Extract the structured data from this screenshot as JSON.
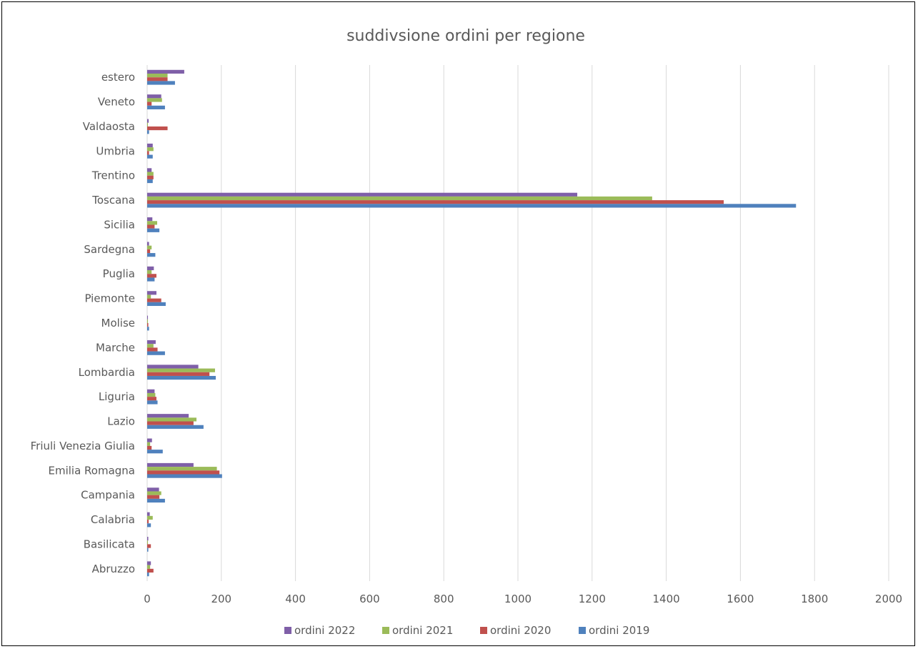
{
  "chart_data": {
    "type": "bar",
    "orientation": "horizontal",
    "title": "suddivsione ordini per regione",
    "xlabel": "",
    "ylabel": "",
    "xlim": [
      0,
      2000
    ],
    "x_ticks": [
      0,
      200,
      400,
      600,
      800,
      1000,
      1200,
      1400,
      1600,
      1800,
      2000
    ],
    "grid": true,
    "legend_position": "bottom",
    "categories": [
      "Abruzzo",
      "Basilicata",
      "Calabria",
      "Campania",
      "Emilia Romagna",
      "Friuli Venezia Giulia",
      "Lazio",
      "Liguria",
      "Lombardia",
      "Marche",
      "Molise",
      "Piemonte",
      "Puglia",
      "Sardegna",
      "Sicilia",
      "Toscana",
      "Trentino",
      "Umbria",
      "Valdaosta",
      "Veneto",
      "estero"
    ],
    "series": [
      {
        "name": "ordini 2022",
        "color": "#7f5fa8",
        "values": [
          10,
          3,
          7,
          32,
          125,
          13,
          112,
          20,
          138,
          23,
          2,
          25,
          18,
          5,
          14,
          1160,
          12,
          15,
          4,
          38,
          100
        ]
      },
      {
        "name": "ordini 2021",
        "color": "#9bbb59",
        "values": [
          8,
          2,
          15,
          38,
          188,
          8,
          133,
          22,
          183,
          17,
          2,
          10,
          12,
          12,
          27,
          1362,
          17,
          17,
          2,
          40,
          55
        ]
      },
      {
        "name": "ordini 2020",
        "color": "#c0504d",
        "values": [
          17,
          10,
          4,
          33,
          195,
          12,
          125,
          25,
          168,
          28,
          3,
          38,
          25,
          8,
          20,
          1555,
          17,
          5,
          55,
          12,
          55
        ]
      },
      {
        "name": "ordini 2019",
        "color": "#4f81bd",
        "values": [
          5,
          3,
          10,
          48,
          202,
          42,
          152,
          28,
          185,
          48,
          5,
          50,
          20,
          22,
          33,
          1750,
          15,
          15,
          5,
          48,
          75
        ]
      }
    ]
  }
}
